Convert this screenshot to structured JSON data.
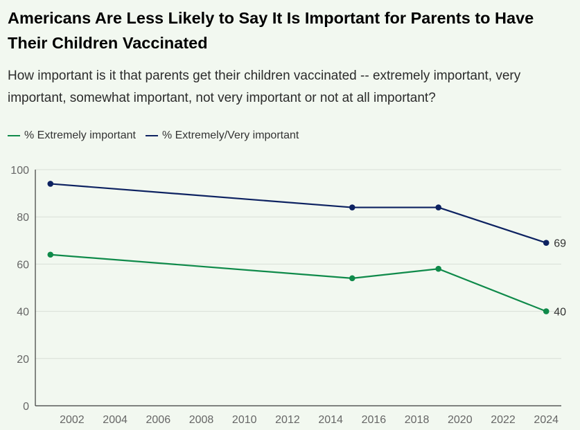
{
  "title": "Americans Are Less Likely to Say It Is Important for Parents to Have Their Children Vaccinated",
  "subtitle": "How important is it that parents get their children vaccinated -- extremely important, very important, somewhat important, not very important or not at all important?",
  "colors": {
    "extremely": "#0f8a4a",
    "extremely_very": "#0d2261",
    "grid": "#d8ded6",
    "axis": "#3a3a3a",
    "tick_text": "#666666"
  },
  "chart_data": {
    "type": "line",
    "title": "Americans Are Less Likely to Say It Is Important for Parents to Have Their Children Vaccinated",
    "xlabel": "",
    "ylabel": "",
    "xlim": [
      2000.3,
      2024.7
    ],
    "ylim": [
      0,
      100
    ],
    "yticks": [
      0,
      20,
      40,
      60,
      80,
      100
    ],
    "xticks": [
      2002,
      2004,
      2006,
      2008,
      2010,
      2012,
      2014,
      2016,
      2018,
      2020,
      2022,
      2024
    ],
    "grid": true,
    "legend_position": "top-left",
    "series": [
      {
        "name": "% Extremely important",
        "color": "#0f8a4a",
        "points": [
          {
            "x": 2001,
            "y": 64
          },
          {
            "x": 2015,
            "y": 54
          },
          {
            "x": 2019,
            "y": 58
          },
          {
            "x": 2024,
            "y": 40
          }
        ],
        "end_label": "40"
      },
      {
        "name": "% Extremely/Very important",
        "color": "#0d2261",
        "points": [
          {
            "x": 2001,
            "y": 94
          },
          {
            "x": 2015,
            "y": 84
          },
          {
            "x": 2019,
            "y": 84
          },
          {
            "x": 2024,
            "y": 69
          }
        ],
        "end_label": "69"
      }
    ]
  }
}
